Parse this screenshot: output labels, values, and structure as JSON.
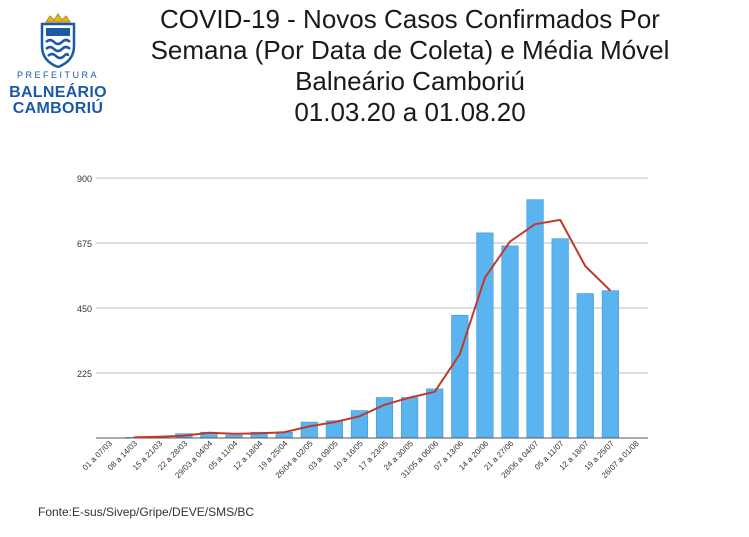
{
  "logo": {
    "emblem_icon": "city-coat-of-arms-icon",
    "line1": "PREFEITURA",
    "line2": "BALNEÁRIO",
    "line3": "CAMBORIÚ"
  },
  "title": {
    "line1": "COVID-19 - Novos Casos Confirmados Por",
    "line2": "Semana (Por Data de Coleta) e Média Móvel",
    "line3": "Balneário Camboriú",
    "line4": "01.03.20 a 01.08.20"
  },
  "source": "Fonte:E-sus/Sivep/Gripe/DEVE/SMS/BC",
  "colors": {
    "bar": "#5ab4f0",
    "bar_edge": "#3a9ad8",
    "line": "#c0392b",
    "grid": "#bdbdbd"
  },
  "chart_data": {
    "type": "bar",
    "categories": [
      "01 a 07/03",
      "08 a 14/03",
      "15 a 21/03",
      "22 a 28/03",
      "29/03 a 04/04",
      "05 a 11/04",
      "12 a 18/04",
      "19 a 25/04",
      "26/04 a 02/05",
      "03 a 09/05",
      "10 a 16/05",
      "17 a 23/05",
      "24 a 30/05",
      "31/05 a 06/06",
      "07 a 13/06",
      "14 a 20/06",
      "21 a 27/06",
      "28/06 a 04/07",
      "05 a 11/07",
      "12 a 18/07",
      "19 a 25/07",
      "26/07 a 01/08"
    ],
    "series": [
      {
        "kind": "bar",
        "values": [
          0,
          2,
          5,
          15,
          20,
          10,
          20,
          20,
          55,
          60,
          95,
          140,
          140,
          170,
          425,
          710,
          665,
          825,
          690,
          500,
          510,
          null
        ]
      },
      {
        "kind": "line",
        "values": [
          null,
          2,
          4,
          8,
          18,
          15,
          16,
          20,
          40,
          55,
          75,
          115,
          140,
          160,
          290,
          555,
          680,
          740,
          755,
          595,
          510,
          null
        ]
      }
    ],
    "yticks": [
      225,
      450,
      675,
      900
    ],
    "ylim": [
      0,
      900
    ],
    "grid": true,
    "legend": "none"
  }
}
